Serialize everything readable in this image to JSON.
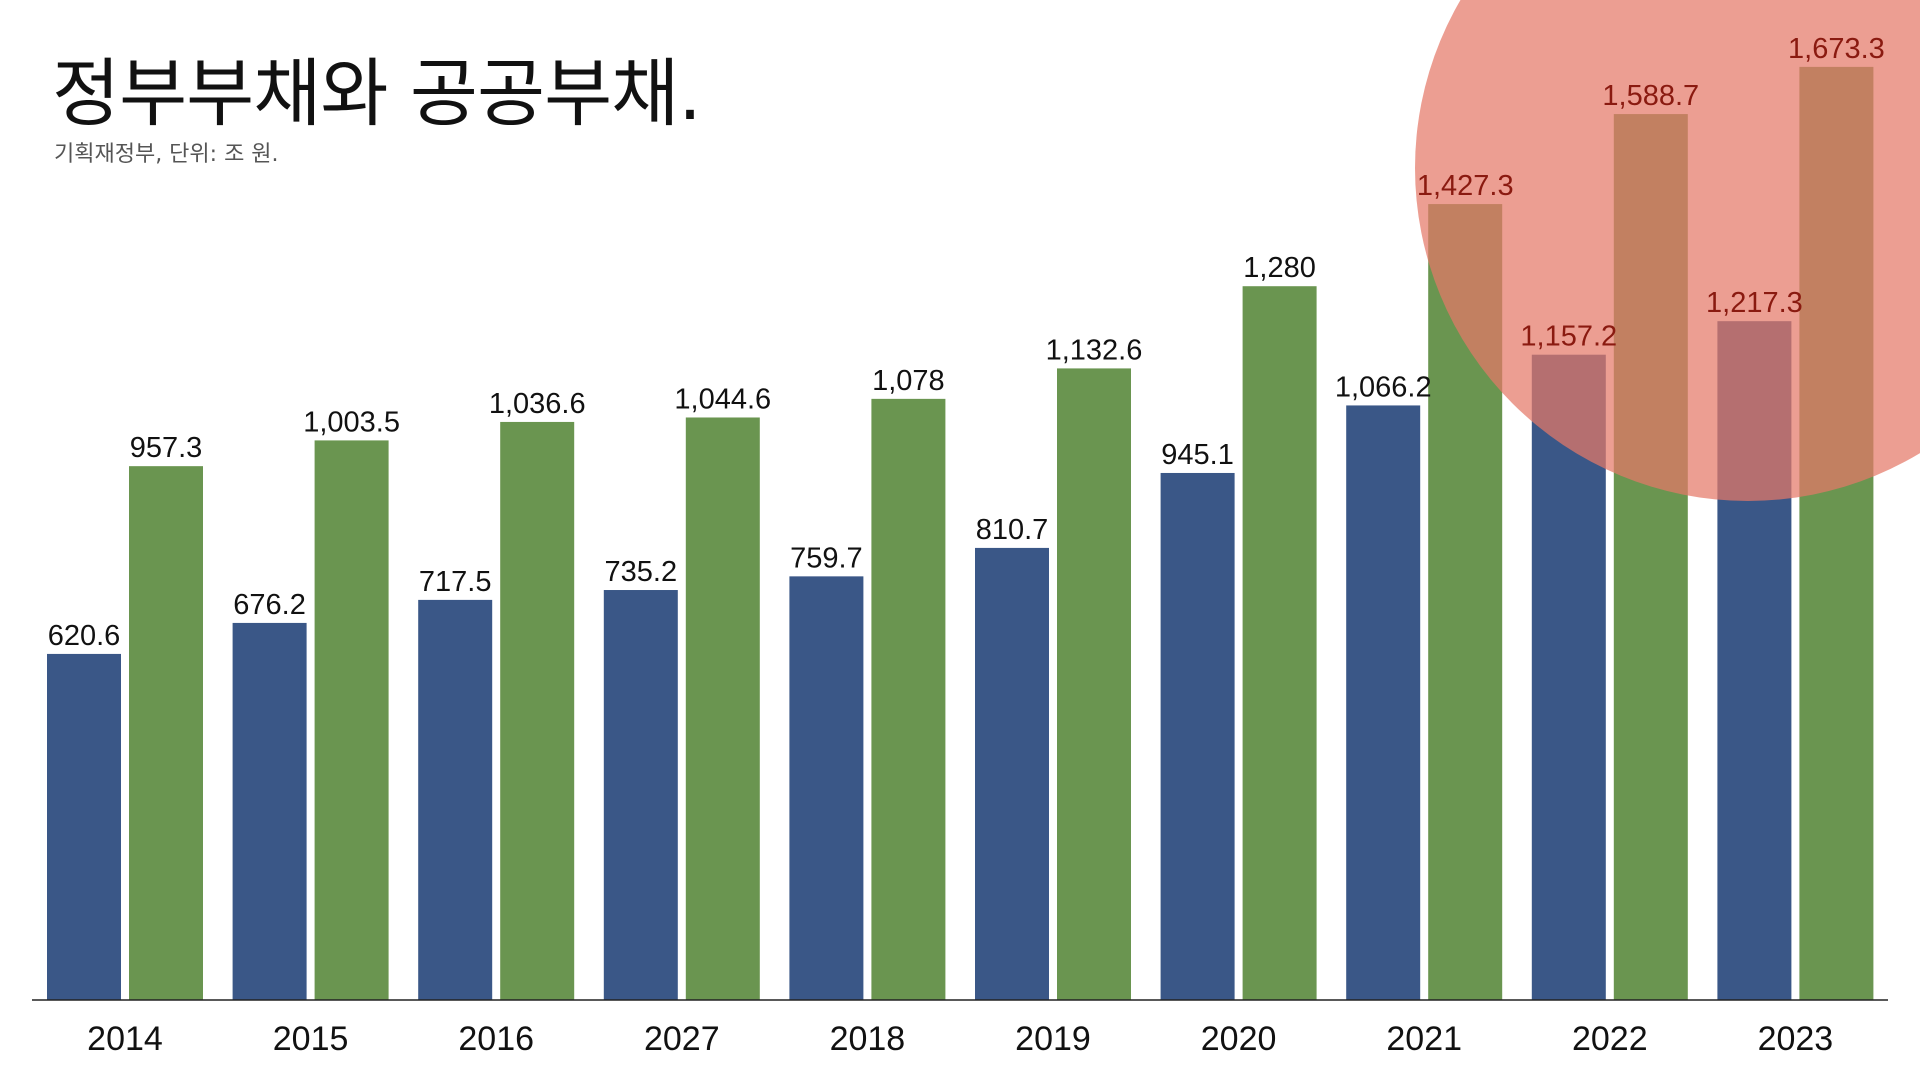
{
  "title": "정부부채와 공공부채.",
  "subtitle": "기획재정부, 단위: 조 원.",
  "colors": {
    "government_debt": "#3a5787",
    "public_debt": "#6a9550",
    "highlight_circle": "#e47868",
    "axis": "#222222"
  },
  "chart_data": {
    "type": "bar",
    "title": "정부부채와 공공부채.",
    "subtitle": "기획재정부, 단위: 조 원.",
    "categories": [
      "2014",
      "2015",
      "2016",
      "2027",
      "2018",
      "2019",
      "2020",
      "2021",
      "2022",
      "2023"
    ],
    "series": [
      {
        "color": "#3a5787",
        "values": [
          620.6,
          676.2,
          717.5,
          735.2,
          759.7,
          810.7,
          945.1,
          1066.2,
          1157.2,
          1217.3
        ],
        "labels": [
          "620.6",
          "676.2",
          "717.5",
          "735.2",
          "759.7",
          "810.7",
          "945.1",
          "1,066.2",
          "1,157.2",
          "1,217.3"
        ]
      },
      {
        "color": "#6a9550",
        "values": [
          957.3,
          1003.5,
          1036.6,
          1044.6,
          1078,
          1132.6,
          1280,
          1427.3,
          1588.7,
          1673.3
        ],
        "labels": [
          "957.3",
          "1,003.5",
          "1,036.6",
          "1,044.6",
          "1,078",
          "1,132.6",
          "1,280",
          "1,427.3",
          "1,588.7",
          "1,673.3"
        ]
      }
    ],
    "xlabel": "",
    "ylabel": "",
    "ylim": [
      0,
      1700
    ],
    "grid": false,
    "legend": "none",
    "highlight": {
      "shape": "circle",
      "covers_categories": [
        "2021",
        "2022",
        "2023"
      ]
    }
  }
}
